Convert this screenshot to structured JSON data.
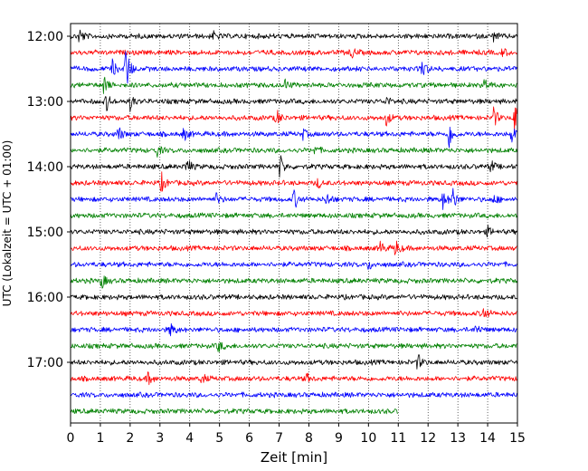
{
  "chart_data": {
    "type": "line",
    "subtype": "helicorder",
    "title": "",
    "xlabel": "Zeit  [min]",
    "ylabel": "UTC (Lokalzeit = UTC + 01:00)",
    "x_ticks": [
      "0",
      "1",
      "2",
      "3",
      "4",
      "5",
      "6",
      "7",
      "8",
      "9",
      "10",
      "11",
      "12",
      "13",
      "14",
      "15"
    ],
    "xlim": [
      0,
      15
    ],
    "y_ticks": [
      "12:00",
      "13:00",
      "14:00",
      "15:00",
      "16:00",
      "17:00"
    ],
    "trace_interval_min": 15,
    "grid": "vertical dotted lines at each minute",
    "colors": [
      "#000000",
      "#ff0000",
      "#0000ff",
      "#008000"
    ],
    "traces": [
      {
        "start": "12:00",
        "color": "#000000",
        "end_min": 15,
        "events": [
          [
            0.3,
            0.5
          ],
          [
            4.8,
            0.25
          ],
          [
            14.2,
            0.25
          ]
        ]
      },
      {
        "start": "12:15",
        "color": "#ff0000",
        "end_min": 15,
        "events": [
          [
            9.4,
            0.4
          ],
          [
            14.5,
            0.25
          ]
        ]
      },
      {
        "start": "12:30",
        "color": "#0000ff",
        "end_min": 15,
        "events": [
          [
            1.4,
            0.5
          ],
          [
            1.85,
            1.6
          ],
          [
            11.8,
            0.6
          ]
        ]
      },
      {
        "start": "12:45",
        "color": "#008000",
        "end_min": 15,
        "events": [
          [
            1.1,
            0.6
          ],
          [
            7.2,
            0.3
          ],
          [
            13.9,
            0.4
          ]
        ]
      },
      {
        "start": "13:00",
        "color": "#000000",
        "end_min": 15,
        "events": [
          [
            1.2,
            0.55
          ],
          [
            2.0,
            0.5
          ],
          [
            10.6,
            0.25
          ]
        ]
      },
      {
        "start": "13:15",
        "color": "#ff0000",
        "end_min": 15,
        "events": [
          [
            6.9,
            0.55
          ],
          [
            10.6,
            0.45
          ],
          [
            14.2,
            0.6
          ],
          [
            14.9,
            0.9
          ]
        ]
      },
      {
        "start": "13:30",
        "color": "#0000ff",
        "end_min": 15,
        "events": [
          [
            1.6,
            0.5
          ],
          [
            3.8,
            0.4
          ],
          [
            7.8,
            0.3
          ],
          [
            12.7,
            0.9
          ],
          [
            14.8,
            0.5
          ]
        ]
      },
      {
        "start": "13:45",
        "color": "#008000",
        "end_min": 15,
        "events": [
          [
            2.9,
            0.35
          ],
          [
            8.2,
            0.25
          ]
        ]
      },
      {
        "start": "14:00",
        "color": "#000000",
        "end_min": 15,
        "events": [
          [
            3.9,
            0.55
          ],
          [
            7.0,
            0.9
          ],
          [
            14.1,
            0.4
          ]
        ]
      },
      {
        "start": "14:15",
        "color": "#ff0000",
        "end_min": 15,
        "events": [
          [
            3.05,
            0.6
          ],
          [
            8.3,
            0.3
          ]
        ]
      },
      {
        "start": "14:30",
        "color": "#0000ff",
        "end_min": 15,
        "events": [
          [
            4.9,
            0.35
          ],
          [
            7.5,
            0.6
          ],
          [
            8.6,
            0.4
          ],
          [
            12.5,
            0.55
          ],
          [
            12.8,
            0.85
          ],
          [
            14.2,
            0.3
          ]
        ]
      },
      {
        "start": "14:45",
        "color": "#008000",
        "end_min": 15,
        "events": []
      },
      {
        "start": "15:00",
        "color": "#000000",
        "end_min": 15,
        "events": [
          [
            14.0,
            0.3
          ]
        ]
      },
      {
        "start": "15:15",
        "color": "#ff0000",
        "end_min": 15,
        "events": [
          [
            10.4,
            0.4
          ],
          [
            10.9,
            0.55
          ]
        ]
      },
      {
        "start": "15:30",
        "color": "#0000ff",
        "end_min": 15,
        "events": [
          [
            10.0,
            0.3
          ]
        ]
      },
      {
        "start": "15:45",
        "color": "#008000",
        "end_min": 15,
        "events": [
          [
            1.05,
            0.45
          ]
        ]
      },
      {
        "start": "16:00",
        "color": "#000000",
        "end_min": 15,
        "events": []
      },
      {
        "start": "16:15",
        "color": "#ff0000",
        "end_min": 15,
        "events": [
          [
            13.85,
            0.45
          ]
        ]
      },
      {
        "start": "16:30",
        "color": "#0000ff",
        "end_min": 15,
        "events": [
          [
            3.35,
            0.45
          ],
          [
            13.6,
            0.3
          ]
        ]
      },
      {
        "start": "16:45",
        "color": "#008000",
        "end_min": 15,
        "events": [
          [
            4.95,
            0.4
          ]
        ]
      },
      {
        "start": "17:00",
        "color": "#000000",
        "end_min": 15,
        "events": [
          [
            11.65,
            0.5
          ]
        ]
      },
      {
        "start": "17:15",
        "color": "#ff0000",
        "end_min": 15,
        "events": [
          [
            2.6,
            0.4
          ],
          [
            4.4,
            0.3
          ],
          [
            7.9,
            0.3
          ]
        ]
      },
      {
        "start": "17:30",
        "color": "#0000ff",
        "end_min": 15,
        "events": []
      },
      {
        "start": "17:45",
        "color": "#008000",
        "end_min": 11,
        "events": []
      }
    ]
  }
}
